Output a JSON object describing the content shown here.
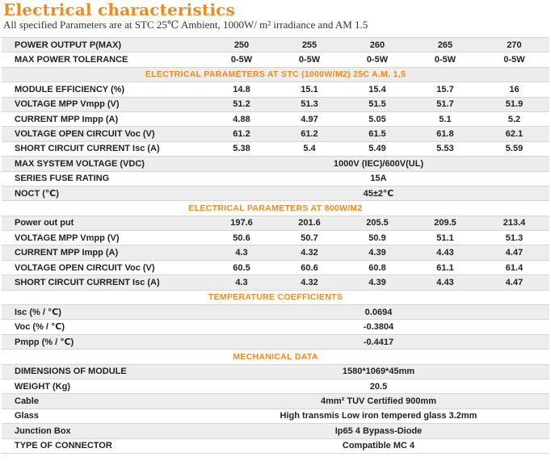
{
  "header": {
    "title": "Electrical characteristics",
    "subtitle": "All specified Parameters are at STC 25℃ Ambient, 1000W/ m² irradiance and AM 1.5"
  },
  "table": {
    "rows": [
      {
        "type": "data",
        "label": "POWER OUTPUT P(MAX)",
        "values": [
          "250",
          "255",
          "260",
          "265",
          "270"
        ]
      },
      {
        "type": "data",
        "label": "MAX POWER TOLERANCE",
        "values": [
          "0-5W",
          "0-5W",
          "0-5W",
          "0-5W",
          "0-5W"
        ]
      },
      {
        "type": "section",
        "label": "ELECTRICAL PARAMETERS AT STC (1000W/M2) 25C A.M. 1,5"
      },
      {
        "type": "data",
        "label": "MODULE EFFICIENCY (%)",
        "values": [
          "14.8",
          "15.1",
          "15.4",
          "15.7",
          "16"
        ]
      },
      {
        "type": "data",
        "label": "VOLTAGE MPP Vmpp (V)",
        "values": [
          "51.2",
          "51.3",
          "51.5",
          "51.7",
          "51.9"
        ]
      },
      {
        "type": "data",
        "label": "CURRENT MPP Impp (A)",
        "values": [
          "4.88",
          "4.97",
          "5.05",
          "5.1",
          "5.2"
        ]
      },
      {
        "type": "data",
        "label": "VOLTAGE OPEN CIRCUIT Voc (V)",
        "values": [
          "61.2",
          "61.2",
          "61.5",
          "61.8",
          "62.1"
        ]
      },
      {
        "type": "data",
        "label": "SHORT CIRCUIT CURRENT Isc (A)",
        "values": [
          "5.38",
          "5.4",
          "5.49",
          "5.53",
          "5.59"
        ]
      },
      {
        "type": "span",
        "label": "MAX SYSTEM VOLTAGE (VDC)",
        "value": "1000V (IEC)/600V(UL)"
      },
      {
        "type": "span",
        "label": "SERIES FUSE RATING",
        "value": "15A"
      },
      {
        "type": "span",
        "label": "NOCT (℃)",
        "value": "45±2℃"
      },
      {
        "type": "section",
        "label": "ELECTRICAL PARAMETERS AT 800W/M2"
      },
      {
        "type": "data",
        "label": "Power out put",
        "values": [
          "197.6",
          "201.6",
          "205.5",
          "209.5",
          "213.4"
        ]
      },
      {
        "type": "data",
        "label": "VOLTAGE MPP Vmpp (V)",
        "values": [
          "50.6",
          "50.7",
          "50.9",
          "51.1",
          "51.3"
        ]
      },
      {
        "type": "data",
        "label": "CURRENT MPP Impp (A)",
        "values": [
          "4.3",
          "4.32",
          "4.39",
          "4.43",
          "4.47"
        ]
      },
      {
        "type": "data",
        "label": "VOLTAGE OPEN CIRCUIT Voc (V)",
        "values": [
          "60.5",
          "60.6",
          "60.8",
          "61.1",
          "61.4"
        ]
      },
      {
        "type": "data",
        "label": "SHORT CIRCUIT CURRENT Isc (A)",
        "values": [
          "4.3",
          "4.32",
          "4.39",
          "4.43",
          "4.47"
        ]
      },
      {
        "type": "section",
        "label": "TEMPERATURE COEFFICIENTS"
      },
      {
        "type": "span",
        "label": "Isc (% / ℃)",
        "value": "0.0694"
      },
      {
        "type": "span",
        "label": "Voc (% / ℃)",
        "value": "-0.3804"
      },
      {
        "type": "span",
        "label": "Pmpp (% / ℃)",
        "value": "-0.4417"
      },
      {
        "type": "section",
        "label": "MECHANICAL DATA"
      },
      {
        "type": "span",
        "label": "DIMENSIONS OF MODULE",
        "value": "1580*1069*45mm"
      },
      {
        "type": "span",
        "label": "WEIGHT (Kg)",
        "value": "20.5"
      },
      {
        "type": "span",
        "label": "Cable",
        "value": "4mm² TUV Certified 900mm"
      },
      {
        "type": "span",
        "label": "Glass",
        "value": "High transmis Low iron tempered glass 3.2mm"
      },
      {
        "type": "span",
        "label": "Junction Box",
        "value": "Ip65 4 Bypass-Diode"
      },
      {
        "type": "span",
        "label": "TYPE OF CONNECTOR",
        "value": "Compatible MC 4"
      }
    ]
  },
  "colors": {
    "accent": "#f08a1c",
    "stripe": "#ededed",
    "text": "#222222"
  }
}
